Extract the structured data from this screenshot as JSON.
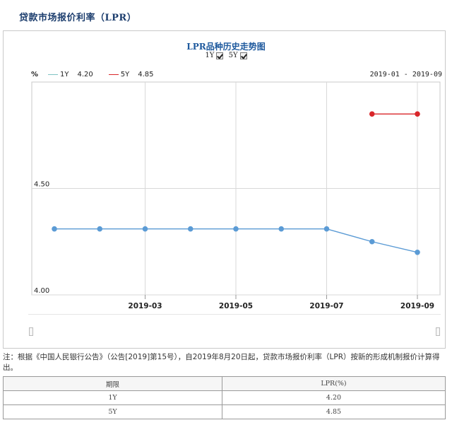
{
  "page": {
    "title": "贷款市场报价利率（LPR）"
  },
  "chart_data": {
    "type": "line",
    "title": "LPR品种历史走势图",
    "toggles": [
      {
        "label": "1Y",
        "checked": true
      },
      {
        "label": "5Y",
        "checked": true
      }
    ],
    "unit_label": "%",
    "date_range": "2019-01 - 2019-09",
    "legend_position": "top-left",
    "grid": true,
    "x_ticks": [
      "2019-03",
      "2019-05",
      "2019-07",
      "2019-09"
    ],
    "y_ticks": [
      "4.00",
      "4.50"
    ],
    "ylim": [
      4.0,
      5.0
    ],
    "series": [
      {
        "name": "1Y",
        "latest": "4.20",
        "color": "#5b9bd5",
        "legend_color": "#7fc4c4",
        "x": [
          "2019-01",
          "2019-02",
          "2019-03",
          "2019-04",
          "2019-05",
          "2019-06",
          "2019-07",
          "2019-08",
          "2019-09"
        ],
        "values": [
          4.31,
          4.31,
          4.31,
          4.31,
          4.31,
          4.31,
          4.31,
          4.25,
          4.2
        ]
      },
      {
        "name": "5Y",
        "latest": "4.85",
        "color": "#d9262a",
        "legend_color": "#d9262a",
        "x": [
          "2019-08",
          "2019-09"
        ],
        "values": [
          4.85,
          4.85
        ]
      }
    ]
  },
  "note": {
    "text": "注：根据《中国人民银行公告》（公告[2019]第15号），自2019年8月20日起，贷款市场报价利率（LPR）按新的形成机制报价计算得出。"
  },
  "table": {
    "headers": [
      "期限",
      "LPR(%)"
    ],
    "rows": [
      {
        "term": "1Y",
        "rate": "4.20"
      },
      {
        "term": "5Y",
        "rate": "4.85"
      }
    ]
  }
}
